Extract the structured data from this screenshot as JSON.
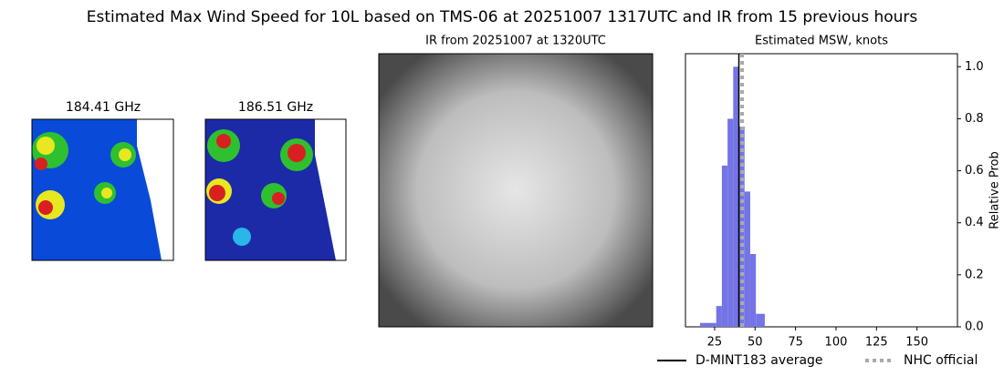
{
  "title": "Estimated Max Wind Speed for 10L based on TMS-06 at 20251007 1317UTC and IR from 15 previous hours",
  "images": [
    {
      "title": "184.41 GHz"
    },
    {
      "title": "186.51 GHz"
    },
    {
      "title": "IR from 20251007 at 1320UTC"
    }
  ],
  "chart_data": {
    "type": "histogram",
    "title": "Estimated MSW, knots",
    "y_label": "Relative Prob",
    "bins": [
      16,
      26,
      29.5,
      33,
      36.5,
      40,
      43.5,
      47,
      50.5,
      56
    ],
    "counts": [
      0.015,
      0.08,
      0.62,
      0.8,
      1.0,
      0.77,
      0.52,
      0.28,
      0.05
    ],
    "color": "#7474e6",
    "xlim": [
      7,
      175
    ],
    "xticks": [
      25,
      50,
      75,
      100,
      125,
      150
    ],
    "ylim": [
      0,
      1.05
    ],
    "yticks": [
      {
        "value": 0,
        "label": "0.0"
      },
      {
        "value": 0.2,
        "label": "0.2"
      },
      {
        "value": 0.4,
        "label": "0.4"
      },
      {
        "value": 0.6,
        "label": "0.6"
      },
      {
        "value": 0.8,
        "label": "0.8"
      },
      {
        "value": 1.0,
        "label": "1.0"
      }
    ],
    "lines": [
      {
        "name": "D-MINT183 average",
        "value": 40,
        "color": "#000000",
        "style": "solid"
      },
      {
        "name": "NHC official",
        "value": 42,
        "color": "#aaaaaa",
        "style": "dotted"
      }
    ]
  }
}
